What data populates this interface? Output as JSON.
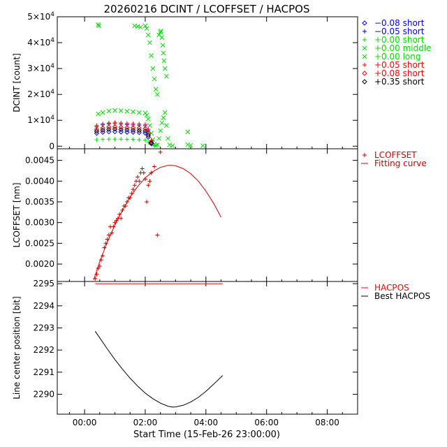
{
  "figure_title": "20260216 DCINT / LCOFFSET / HACPOS",
  "xlabel": "Start Time (15-Feb-26 23:00:00)",
  "colors": {
    "blue": "#0000ff",
    "green": "#00dd00",
    "red": "#ff0000",
    "darkred": "#cc0000",
    "black": "#000000"
  },
  "chart_data": [
    {
      "type": "scatter",
      "name": "DCINT",
      "ylabel": "DCINT [count]",
      "xlim": [
        -0.9,
        9.0
      ],
      "ylim": [
        -1000,
        50000
      ],
      "yticks": [
        0,
        10000,
        20000,
        30000,
        40000,
        50000
      ],
      "ytick_labels": [
        {
          "mant": "0",
          "exp": ""
        },
        {
          "mant": "1×10",
          "exp": "4"
        },
        {
          "mant": "2×10",
          "exp": "4"
        },
        {
          "mant": "3×10",
          "exp": "4"
        },
        {
          "mant": "4×10",
          "exp": "4"
        },
        {
          "mant": "5×10",
          "exp": "4"
        }
      ],
      "legend": [
        {
          "marker": "diamond",
          "text": "−0.08 short",
          "color": "#0000ff"
        },
        {
          "marker": "plus",
          "text": "−0.05 short",
          "color": "#0000ff"
        },
        {
          "marker": "plus",
          "text": "+0.00 short",
          "color": "#00dd00"
        },
        {
          "marker": "x",
          "text": "+0.00 middle",
          "color": "#00dd00"
        },
        {
          "marker": "x",
          "text": "+0.00 long",
          "color": "#00dd00"
        },
        {
          "marker": "plus",
          "text": "+0.05 short",
          "color": "#ff0000"
        },
        {
          "marker": "diamond",
          "text": "+0.08 short",
          "color": "#ff0000"
        },
        {
          "marker": "diamond",
          "text": "+0.35 short",
          "color": "#000000"
        }
      ],
      "series": [
        {
          "name": "+0.00 long",
          "marker": "x",
          "color": "#00dd00",
          "x": [
            0.45,
            0.6,
            0.8,
            1.0,
            1.2,
            1.4,
            1.6,
            1.8,
            2.0,
            2.05,
            2.1,
            2.15,
            2.2,
            2.25,
            2.3,
            2.35,
            2.4,
            2.45,
            2.5,
            2.55,
            2.6,
            2.65,
            2.7,
            2.75,
            2.8,
            2.9,
            3.4,
            3.5,
            3.9
          ],
          "y": [
            12500,
            13000,
            13600,
            13800,
            13700,
            13500,
            13300,
            13000,
            12800,
            12000,
            10500,
            8000,
            5000,
            2500,
            800,
            300,
            500,
            3000,
            6000,
            9000,
            11000,
            13000,
            8000,
            3000,
            500,
            200,
            600,
            300,
            200
          ]
        },
        {
          "name": "+0.00 middle",
          "marker": "x",
          "color": "#00dd00",
          "x": [
            0.45,
            0.47,
            1.65,
            1.75,
            1.85,
            2.0,
            2.05,
            2.1,
            2.15,
            2.2,
            2.25,
            2.3,
            2.35,
            2.4,
            2.45,
            2.5,
            2.52,
            2.55,
            2.58,
            2.6,
            2.62,
            2.65,
            2.7,
            3.4
          ],
          "y": [
            47000,
            46500,
            46500,
            46300,
            46000,
            46500,
            45500,
            43000,
            40000,
            35000,
            30000,
            26000,
            22000,
            20000,
            43000,
            44000,
            44500,
            42000,
            39000,
            36000,
            33000,
            30000,
            27000,
            5500
          ]
        },
        {
          "name": "+0.00 short",
          "marker": "plus",
          "color": "#00dd00",
          "x": [
            0.4,
            0.6,
            0.8,
            1.0,
            1.2,
            1.4,
            1.6,
            1.8,
            2.0,
            2.1,
            2.2,
            2.3
          ],
          "y": [
            2500,
            2600,
            2700,
            2700,
            2700,
            2600,
            2600,
            2500,
            2300,
            1500,
            600,
            200
          ]
        },
        {
          "name": "−0.08 short",
          "marker": "diamond",
          "color": "#0000ff",
          "x": [
            0.4,
            0.6,
            0.8,
            1.0,
            1.2,
            1.4,
            1.6,
            1.8,
            2.0,
            2.1,
            2.2
          ],
          "y": [
            5000,
            5400,
            5600,
            5600,
            5500,
            5400,
            5400,
            5300,
            5100,
            3500,
            1000
          ]
        },
        {
          "name": "−0.05 short",
          "marker": "plus",
          "color": "#0000ff",
          "x": [
            0.4,
            0.6,
            0.8,
            1.0,
            1.2,
            1.4,
            1.6,
            1.8,
            2.0,
            2.1,
            2.2
          ],
          "y": [
            7500,
            8200,
            8600,
            8700,
            8500,
            8300,
            8200,
            8100,
            7900,
            6000,
            2000
          ]
        },
        {
          "name": "+0.05 short",
          "marker": "plus",
          "color": "#ff0000",
          "x": [
            0.4,
            0.6,
            0.8,
            1.0,
            1.2,
            1.4,
            1.6,
            1.8,
            2.0,
            2.1,
            2.2
          ],
          "y": [
            8000,
            8600,
            9000,
            9200,
            9000,
            8800,
            8700,
            8600,
            8400,
            6500,
            2200
          ]
        },
        {
          "name": "+0.08 short",
          "marker": "diamond",
          "color": "#ff0000",
          "x": [
            0.4,
            0.6,
            0.8,
            1.0,
            1.2,
            1.4,
            1.6,
            1.8,
            2.0,
            2.1,
            2.2
          ],
          "y": [
            6500,
            7000,
            7400,
            7500,
            7300,
            7200,
            7100,
            7000,
            6800,
            5000,
            1500
          ]
        },
        {
          "name": "+0.35 short",
          "marker": "diamond",
          "color": "#000000",
          "x": [
            0.4,
            0.6,
            0.8,
            1.0,
            1.2,
            1.4,
            1.6,
            1.8,
            2.0,
            2.1,
            2.2
          ],
          "y": [
            5800,
            6200,
            6500,
            6600,
            6400,
            6300,
            6200,
            6100,
            5900,
            4200,
            1200
          ]
        }
      ]
    },
    {
      "type": "scatter",
      "name": "LCOFFSET",
      "ylabel": "LCOFFSET [nm]",
      "xlim": [
        -0.9,
        9.0
      ],
      "ylim": [
        0.00158,
        0.00478
      ],
      "yticks": [
        0.002,
        0.0025,
        0.003,
        0.0035,
        0.004,
        0.0045
      ],
      "ytick_labels": [
        "0.0020",
        "0.0025",
        "0.0030",
        "0.0035",
        "0.0040",
        "0.0045"
      ],
      "legend": [
        {
          "marker": "plus",
          "text": "LCOFFSET",
          "color": "#cc0000"
        },
        {
          "marker": "line",
          "text": "Fitting curve",
          "color": "#cc0000"
        }
      ],
      "series": [
        {
          "name": "LCOFFSET",
          "marker": "plus",
          "color": "#cc0000",
          "x": [
            0.35,
            0.4,
            0.45,
            0.5,
            0.55,
            0.6,
            0.65,
            0.7,
            0.75,
            0.8,
            0.85,
            0.9,
            0.95,
            1.0,
            1.05,
            1.1,
            1.15,
            1.2,
            1.25,
            1.3,
            1.35,
            1.4,
            1.45,
            1.5,
            1.55,
            1.6,
            1.65,
            1.7,
            1.75,
            1.8,
            1.85,
            1.9,
            1.95,
            2.0,
            2.05,
            2.1,
            2.15,
            2.2,
            2.3,
            2.4,
            2.5
          ],
          "y": [
            0.00165,
            0.00175,
            0.0019,
            0.00195,
            0.0021,
            0.0022,
            0.0024,
            0.0025,
            0.0026,
            0.0027,
            0.0029,
            0.00275,
            0.0029,
            0.003,
            0.00305,
            0.0031,
            0.0032,
            0.0031,
            0.0033,
            0.0034,
            0.0034,
            0.0035,
            0.0036,
            0.0036,
            0.0037,
            0.0038,
            0.0039,
            0.004,
            0.0041,
            0.004,
            0.0042,
            0.0043,
            0.0042,
            0.00405,
            0.0035,
            0.0039,
            0.004,
            0.0042,
            0.00435,
            0.0027,
            0.0047
          ]
        },
        {
          "name": "Fitting curve",
          "marker": "line",
          "color": "#cc0000",
          "x": [
            0.3,
            0.5,
            0.75,
            1.0,
            1.25,
            1.5,
            1.75,
            2.0,
            2.25,
            2.5,
            2.75,
            2.85,
            3.0,
            3.25,
            3.5,
            3.75,
            4.0,
            4.25,
            4.5
          ],
          "y": [
            0.00162,
            0.00206,
            0.00253,
            0.00294,
            0.0033,
            0.00361,
            0.00387,
            0.00408,
            0.00423,
            0.00433,
            0.00438,
            0.00438,
            0.00437,
            0.0043,
            0.00418,
            0.004,
            0.00376,
            0.00347,
            0.00313
          ]
        }
      ]
    },
    {
      "type": "line",
      "name": "HACPOS",
      "ylabel": "Line center position [bit]",
      "xlim": [
        -0.9,
        9.0
      ],
      "ylim": [
        2289.1,
        2295.1
      ],
      "yticks": [
        2290,
        2291,
        2292,
        2293,
        2294,
        2295
      ],
      "ytick_labels": [
        "2290",
        "2291",
        "2292",
        "2293",
        "2294",
        "2295"
      ],
      "xticks": [
        0,
        2,
        4,
        6,
        8
      ],
      "xtick_labels": [
        "00:00",
        "02:00",
        "04:00",
        "06:00",
        "08:00"
      ],
      "legend": [
        {
          "marker": "line",
          "text": "HACPOS",
          "color": "#ff0000"
        },
        {
          "marker": "line",
          "text": "Best HACPOS",
          "color": "#000000"
        }
      ],
      "series": [
        {
          "name": "HACPOS",
          "color": "#ff0000",
          "x": [
            0.35,
            4.55
          ],
          "y": [
            2295.0,
            2295.0
          ]
        },
        {
          "name": "Best HACPOS",
          "color": "#000000",
          "x": [
            0.35,
            0.5,
            0.75,
            1.0,
            1.25,
            1.5,
            1.75,
            2.0,
            2.25,
            2.5,
            2.75,
            2.9,
            3.0,
            3.25,
            3.5,
            3.75,
            4.0,
            4.25,
            4.55
          ],
          "y": [
            2292.85,
            2292.55,
            2292.05,
            2291.57,
            2291.13,
            2290.73,
            2290.37,
            2290.05,
            2289.8,
            2289.6,
            2289.46,
            2289.42,
            2289.43,
            2289.5,
            2289.65,
            2289.86,
            2290.13,
            2290.45,
            2290.85
          ]
        }
      ]
    }
  ]
}
